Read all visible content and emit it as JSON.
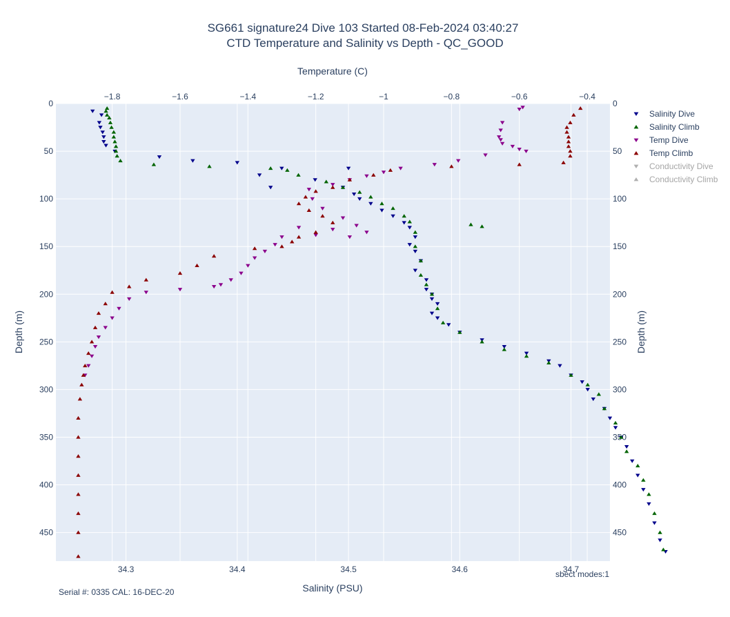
{
  "chart_data": {
    "type": "scatter",
    "title_line1": "SG661 signature24 Dive 103 Started 08-Feb-2024 03:40:27",
    "title_line2": "CTD Temperature and Salinity vs Depth - QC_GOOD",
    "xlabel": "Salinity (PSU)",
    "x2label": "Temperature (C)",
    "ylabel": "Depth (m)",
    "y2label": "Depth (m)",
    "xlim": [
      34.237,
      34.735
    ],
    "x2lim": [
      -1.966,
      -0.333
    ],
    "ylim": [
      480,
      0
    ],
    "x_ticks": [
      34.3,
      34.4,
      34.5,
      34.6,
      34.7
    ],
    "x2_ticks": [
      -1.8,
      -1.6,
      -1.4,
      -1.2,
      -1,
      -0.8,
      -0.6,
      -0.4
    ],
    "y_ticks": [
      0,
      50,
      100,
      150,
      200,
      250,
      300,
      350,
      400,
      450
    ],
    "grid": true,
    "legend_position": "right",
    "legend": [
      {
        "name": "Salinity Dive",
        "color": "#00008b",
        "symbol": "triangle-down",
        "visible": true
      },
      {
        "name": "Salinity Climb",
        "color": "#006400",
        "symbol": "triangle-up",
        "visible": true
      },
      {
        "name": "Temp Dive",
        "color": "#8b008b",
        "symbol": "triangle-down",
        "visible": true
      },
      {
        "name": "Temp Climb",
        "color": "#8b0000",
        "symbol": "triangle-up",
        "visible": true
      },
      {
        "name": "Conductivity Dive",
        "color": "#b0b0b0",
        "symbol": "triangle-down",
        "visible": false
      },
      {
        "name": "Conductivity Climb",
        "color": "#b0b0b0",
        "symbol": "triangle-up",
        "visible": false
      }
    ],
    "series": [
      {
        "name": "Salinity Dive",
        "axis": "salinity",
        "color": "#00008b",
        "symbol": "down",
        "x": [
          34.27,
          34.278,
          34.276,
          34.277,
          34.279,
          34.28,
          34.28,
          34.282,
          34.29,
          34.33,
          34.36,
          34.4,
          34.44,
          34.42,
          34.43,
          34.5,
          34.47,
          34.495,
          34.505,
          34.51,
          34.52,
          34.53,
          34.54,
          34.55,
          34.555,
          34.56,
          34.555,
          34.56,
          34.565,
          34.56,
          34.57,
          34.57,
          34.575,
          34.575,
          34.58,
          34.575,
          34.58,
          34.59,
          34.6,
          34.62,
          34.64,
          34.66,
          34.68,
          34.69,
          34.7,
          34.71,
          34.715,
          34.72,
          34.73,
          34.735,
          34.74,
          34.745,
          34.75,
          34.755,
          34.76,
          34.765,
          34.77,
          34.775,
          34.78,
          34.785
        ],
        "y": [
          8,
          12,
          20,
          25,
          30,
          35,
          40,
          44,
          50,
          56,
          60,
          62,
          68,
          75,
          88,
          68,
          80,
          88,
          95,
          100,
          105,
          112,
          118,
          125,
          130,
          140,
          148,
          155,
          165,
          175,
          185,
          195,
          200,
          205,
          210,
          220,
          225,
          232,
          240,
          248,
          255,
          262,
          270,
          275,
          285,
          292,
          300,
          310,
          320,
          330,
          340,
          350,
          360,
          375,
          390,
          405,
          420,
          440,
          458,
          470
        ]
      },
      {
        "name": "Salinity Climb",
        "axis": "salinity",
        "color": "#006400",
        "symbol": "up",
        "x": [
          34.283,
          34.282,
          34.283,
          34.285,
          34.286,
          34.287,
          34.289,
          34.289,
          34.29,
          34.291,
          34.291,
          34.292,
          34.295,
          34.325,
          34.375,
          34.43,
          34.445,
          34.455,
          34.48,
          34.495,
          34.51,
          34.52,
          34.53,
          34.54,
          34.55,
          34.555,
          34.61,
          34.62,
          34.56,
          34.56,
          34.565,
          34.565,
          34.57,
          34.575,
          34.58,
          34.585,
          34.6,
          34.62,
          34.64,
          34.66,
          34.68,
          34.7,
          34.715,
          34.725,
          34.73,
          34.74,
          34.745,
          34.75,
          34.76,
          34.765,
          34.77,
          34.775,
          34.78,
          34.783
        ],
        "y": [
          5,
          8,
          12,
          15,
          20,
          25,
          30,
          35,
          40,
          45,
          50,
          55,
          60,
          64,
          66,
          68,
          70,
          75,
          82,
          88,
          93,
          98,
          105,
          110,
          118,
          124,
          127,
          129,
          135,
          150,
          165,
          180,
          190,
          200,
          215,
          230,
          240,
          250,
          258,
          265,
          272,
          285,
          295,
          305,
          320,
          335,
          350,
          365,
          380,
          395,
          410,
          430,
          450,
          468
        ]
      },
      {
        "name": "Temp Dive",
        "axis": "temperature",
        "color": "#8b008b",
        "symbol": "down",
        "x": [
          -0.59,
          -0.6,
          -0.65,
          -0.655,
          -0.66,
          -0.655,
          -0.65,
          -0.62,
          -0.6,
          -0.58,
          -0.7,
          -0.78,
          -0.85,
          -0.95,
          -1.0,
          -1.05,
          -1.1,
          -1.15,
          -1.22,
          -1.21,
          -1.18,
          -1.12,
          -1.08,
          -1.05,
          -1.1,
          -1.15,
          -1.2,
          -1.25,
          -1.3,
          -1.32,
          -1.35,
          -1.38,
          -1.4,
          -1.42,
          -1.45,
          -1.48,
          -1.5,
          -1.6,
          -1.7,
          -1.75,
          -1.78,
          -1.8,
          -1.82,
          -1.84,
          -1.85,
          -1.86,
          -1.87,
          -1.88
        ],
        "y": [
          4,
          6,
          20,
          28,
          35,
          38,
          42,
          45,
          48,
          50,
          54,
          60,
          64,
          68,
          72,
          76,
          80,
          85,
          90,
          100,
          110,
          120,
          128,
          135,
          140,
          132,
          138,
          130,
          140,
          148,
          155,
          162,
          170,
          178,
          185,
          190,
          192,
          195,
          198,
          205,
          215,
          225,
          235,
          245,
          255,
          265,
          275,
          285
        ]
      },
      {
        "name": "Temp Climb",
        "axis": "temperature",
        "color": "#8b0000",
        "symbol": "up",
        "x": [
          -0.42,
          -0.44,
          -0.45,
          -0.46,
          -0.46,
          -0.455,
          -0.455,
          -0.455,
          -0.45,
          -0.45,
          -0.47,
          -0.6,
          -0.8,
          -0.98,
          -1.03,
          -1.1,
          -1.15,
          -1.2,
          -1.23,
          -1.25,
          -1.22,
          -1.18,
          -1.15,
          -1.2,
          -1.25,
          -1.27,
          -1.3,
          -1.38,
          -1.5,
          -1.55,
          -1.6,
          -1.7,
          -1.75,
          -1.8,
          -1.82,
          -1.84,
          -1.85,
          -1.86,
          -1.87,
          -1.88,
          -1.885,
          -1.89,
          -1.895,
          -1.9,
          -1.9,
          -1.9,
          -1.9,
          -1.9,
          -1.9,
          -1.9,
          -1.9
        ],
        "y": [
          5,
          12,
          20,
          25,
          30,
          35,
          40,
          45,
          50,
          55,
          62,
          64,
          66,
          70,
          75,
          80,
          88,
          92,
          98,
          105,
          112,
          118,
          125,
          135,
          140,
          145,
          150,
          152,
          160,
          170,
          178,
          185,
          192,
          198,
          210,
          220,
          235,
          250,
          262,
          275,
          285,
          295,
          310,
          330,
          350,
          370,
          390,
          410,
          430,
          450,
          475
        ]
      }
    ]
  },
  "annotations": {
    "serial": "Serial #: 0335  CAL: 16-DEC-20",
    "modes": "sbect modes:1"
  },
  "colors": {
    "plot_bg": "#e5ecf6",
    "grid": "#ffffff",
    "text": "#2a3f5f"
  }
}
